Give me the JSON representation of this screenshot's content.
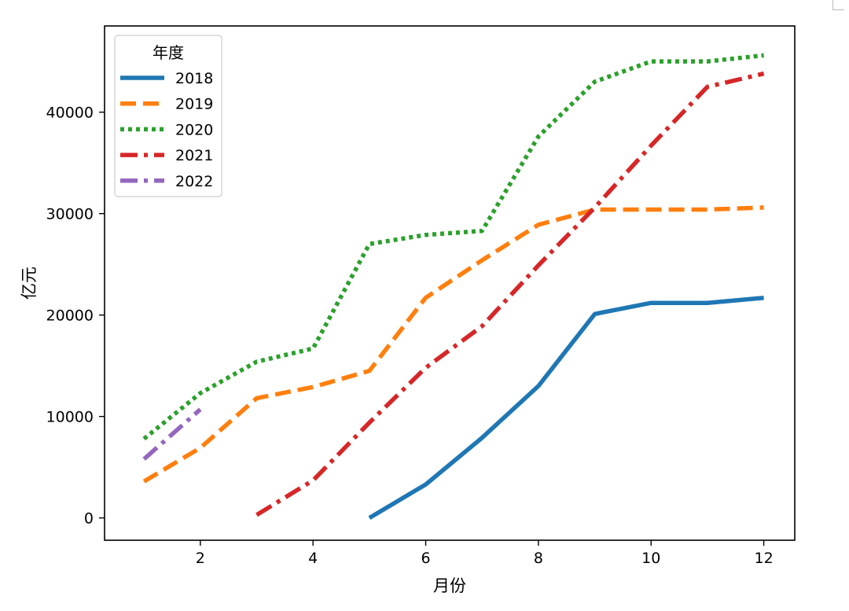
{
  "chart_data": {
    "type": "line",
    "xlabel": "月份",
    "ylabel": "亿元",
    "xlim": [
      0.3,
      12.55
    ],
    "ylim": [
      -2200,
      48500
    ],
    "xticks": [
      2,
      4,
      6,
      8,
      10,
      12
    ],
    "yticks": [
      0,
      10000,
      20000,
      30000,
      40000
    ],
    "grid": false,
    "legend": {
      "title": "年度",
      "position": "top-left"
    },
    "series": [
      {
        "name": "2018",
        "color": "#1f77b4",
        "style": "solid",
        "x": [
          5,
          6,
          7,
          8,
          9,
          10,
          11,
          12
        ],
        "values": [
          0,
          3300,
          7900,
          13000,
          20100,
          21200,
          21200,
          21700
        ]
      },
      {
        "name": "2019",
        "color": "#ff7f0e",
        "style": "dashed",
        "x": [
          1,
          2,
          3,
          4,
          5,
          6,
          7,
          8,
          9,
          10,
          11,
          12
        ],
        "values": [
          3600,
          6900,
          11800,
          12900,
          14500,
          21700,
          25400,
          28900,
          30400,
          30400,
          30400,
          30600
        ]
      },
      {
        "name": "2020",
        "color": "#2ca02c",
        "style": "dotted",
        "x": [
          1,
          2,
          3,
          4,
          5,
          6,
          7,
          8,
          9,
          10,
          11,
          12
        ],
        "values": [
          7800,
          12300,
          15400,
          16700,
          27000,
          27900,
          28300,
          37600,
          43000,
          45000,
          45000,
          45600
        ]
      },
      {
        "name": "2021",
        "color": "#d62728",
        "style": "dashdot",
        "x": [
          3,
          4,
          5,
          6,
          7,
          8,
          9,
          10,
          11,
          12
        ],
        "values": [
          300,
          3700,
          9400,
          14800,
          18900,
          24900,
          30600,
          36700,
          42500,
          43800
        ]
      },
      {
        "name": "2022",
        "color": "#9467bd",
        "style": "dashdot",
        "x": [
          1,
          2
        ],
        "values": [
          5800,
          10700
        ]
      }
    ]
  }
}
